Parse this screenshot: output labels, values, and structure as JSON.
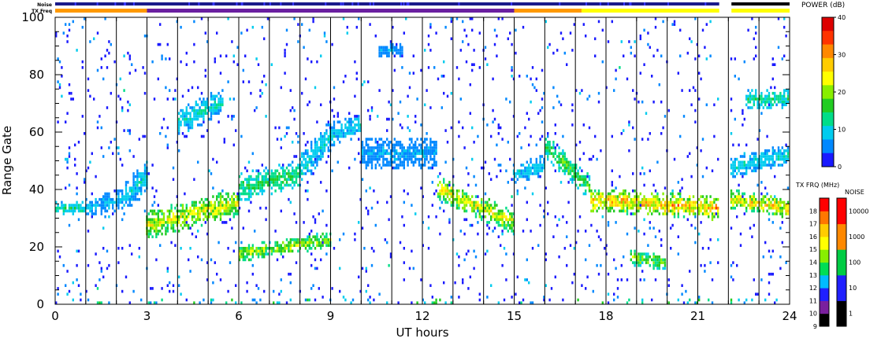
{
  "status_bars": {
    "noise_label": "Noise",
    "txfreq_label": "TX Freq"
  },
  "chart_data": {
    "type": "heatmap",
    "title": "",
    "xlabel": "UT hours",
    "ylabel": "Range Gate",
    "xlim": [
      0,
      24
    ],
    "ylim": [
      0,
      100
    ],
    "x_ticks": [
      "0",
      "3",
      "6",
      "9",
      "12",
      "15",
      "18",
      "21",
      "24"
    ],
    "y_ticks": [
      "0",
      "20",
      "40",
      "60",
      "80",
      "100"
    ],
    "scan_lines_ut": [
      1,
      2,
      3,
      4,
      5,
      6,
      7,
      8,
      9,
      10,
      11,
      12,
      13,
      14,
      15,
      16,
      17,
      18,
      19,
      20,
      21,
      22,
      23
    ],
    "data_gap_ut": [
      21.7,
      22.1
    ],
    "echo_bands": [
      {
        "t0": 0,
        "t1": 1,
        "g0": 33,
        "g1": 33,
        "w": 3,
        "p": 12
      },
      {
        "t0": 1,
        "t1": 2.2,
        "g0": 33,
        "g1": 36,
        "w": 5,
        "p": 8
      },
      {
        "t0": 2.2,
        "t1": 3.0,
        "g0": 36,
        "g1": 44,
        "w": 8,
        "p": 9
      },
      {
        "t0": 3.0,
        "t1": 6.0,
        "g0": 27,
        "g1": 35,
        "w": 7,
        "p": 22
      },
      {
        "t0": 6.0,
        "t1": 8.0,
        "g0": 40,
        "g1": 45,
        "w": 7,
        "p": 14
      },
      {
        "t0": 8.0,
        "t1": 9.0,
        "g0": 46,
        "g1": 58,
        "w": 8,
        "p": 10
      },
      {
        "t0": 9.0,
        "t1": 10.0,
        "g0": 58,
        "g1": 62,
        "w": 6,
        "p": 9
      },
      {
        "t0": 10.0,
        "t1": 12.5,
        "g0": 52,
        "g1": 52,
        "w": 8,
        "p": 7
      },
      {
        "t0": 12.5,
        "t1": 15.0,
        "g0": 40,
        "g1": 28,
        "w": 6,
        "p": 22
      },
      {
        "t0": 15.0,
        "t1": 16.0,
        "g0": 45,
        "g1": 48,
        "w": 5,
        "p": 9
      },
      {
        "t0": 16.0,
        "t1": 17.5,
        "g0": 55,
        "g1": 40,
        "w": 6,
        "p": 16
      },
      {
        "t0": 17.5,
        "t1": 21.7,
        "g0": 36,
        "g1": 33,
        "w": 6,
        "p": 26
      },
      {
        "t0": 22.1,
        "t1": 24.0,
        "g0": 36,
        "g1": 33,
        "w": 5,
        "p": 24
      },
      {
        "t0": 22.1,
        "t1": 24.0,
        "g0": 47,
        "g1": 52,
        "w": 5,
        "p": 10
      },
      {
        "t0": 22.6,
        "t1": 24.0,
        "g0": 71,
        "g1": 71,
        "w": 5,
        "p": 12
      },
      {
        "t0": 4.0,
        "t1": 5.5,
        "g0": 63,
        "g1": 70,
        "w": 7,
        "p": 10
      },
      {
        "t0": 6.0,
        "t1": 9.0,
        "g0": 17,
        "g1": 22,
        "w": 4,
        "p": 20
      },
      {
        "t0": 18.8,
        "t1": 20.0,
        "g0": 16,
        "g1": 14,
        "w": 4,
        "p": 18
      },
      {
        "t0": 10.6,
        "t1": 11.4,
        "g0": 88,
        "g1": 88,
        "w": 4,
        "p": 6
      }
    ],
    "power_scale": {
      "label": "POWER (dB)",
      "min": 0,
      "max": 40,
      "ticks": [
        "0",
        "10",
        "20",
        "30",
        "40"
      ],
      "colors": [
        "#1a1aff",
        "#0088ff",
        "#00ccee",
        "#00dd88",
        "#22cc22",
        "#88ee00",
        "#ffff00",
        "#ffcc00",
        "#ff8800",
        "#ff3300",
        "#dd0000"
      ]
    },
    "txfreq_scale": {
      "label": "TX FRQ (MHz)",
      "ticks": [
        "9",
        "10",
        "11",
        "12",
        "13",
        "14",
        "15",
        "16",
        "17",
        "18"
      ],
      "colors": [
        "#000000",
        "#7a1f9e",
        "#2020ff",
        "#00bbff",
        "#00dd55",
        "#88ee00",
        "#ffff00",
        "#ffcc00",
        "#ff7700",
        "#ff0000"
      ]
    },
    "noise_scale": {
      "label": "NOISE",
      "ticks": [
        "1",
        "10",
        "100",
        "1000",
        "10000"
      ],
      "colors": [
        "#000000",
        "#2020ff",
        "#00cc44",
        "#ff8800",
        "#ff0000"
      ]
    },
    "txfreq_bar": [
      {
        "t0": 0,
        "t1": 3.0,
        "color": "#ff9900"
      },
      {
        "t0": 3.0,
        "t1": 15.0,
        "color": "#6a1fa0"
      },
      {
        "t0": 15.0,
        "t1": 17.2,
        "color": "#ff9900"
      },
      {
        "t0": 17.2,
        "t1": 21.7,
        "color": "#ffff00"
      },
      {
        "t0": 22.1,
        "t1": 24.0,
        "color": "#ffff00"
      }
    ],
    "noise_bar": [
      {
        "t0": 0,
        "t1": 21.7,
        "color": "#1a1a8a"
      },
      {
        "t0": 22.1,
        "t1": 24.0,
        "color": "#000000"
      }
    ]
  }
}
